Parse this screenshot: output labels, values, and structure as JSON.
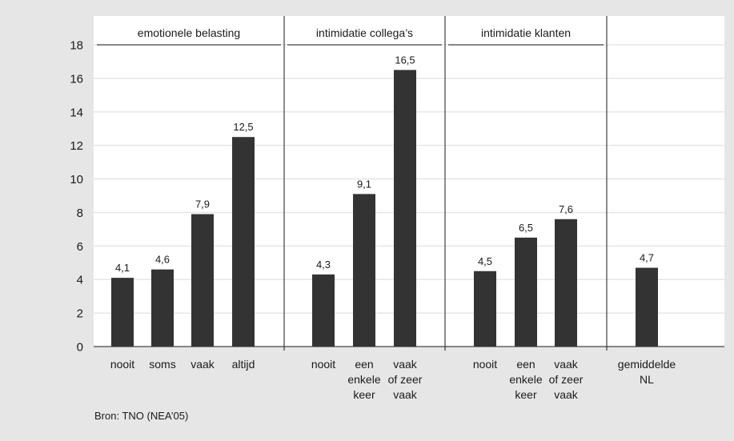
{
  "chart_data": {
    "type": "bar",
    "ylim": [
      0,
      18
    ],
    "yticks": [
      0,
      2,
      4,
      6,
      8,
      10,
      12,
      14,
      16,
      18
    ],
    "groups": [
      {
        "title": "emotionele belasting",
        "bars": [
          {
            "label": [
              "nooit"
            ],
            "value": 4.1,
            "value_label": "4,1"
          },
          {
            "label": [
              "soms"
            ],
            "value": 4.6,
            "value_label": "4,6"
          },
          {
            "label": [
              "vaak"
            ],
            "value": 7.9,
            "value_label": "7,9"
          },
          {
            "label": [
              "altijd"
            ],
            "value": 12.5,
            "value_label": "12,5"
          }
        ]
      },
      {
        "title": "intimidatie collega’s",
        "bars": [
          {
            "label": [
              "nooit"
            ],
            "value": 4.3,
            "value_label": "4,3"
          },
          {
            "label": [
              "een",
              "enkele",
              "keer"
            ],
            "value": 9.1,
            "value_label": "9,1"
          },
          {
            "label": [
              "vaak",
              "of zeer",
              "vaak"
            ],
            "value": 16.5,
            "value_label": "16,5"
          }
        ]
      },
      {
        "title": "intimidatie klanten",
        "bars": [
          {
            "label": [
              "nooit"
            ],
            "value": 4.5,
            "value_label": "4,5"
          },
          {
            "label": [
              "een",
              "enkele",
              "keer"
            ],
            "value": 6.5,
            "value_label": "6,5"
          },
          {
            "label": [
              "vaak",
              "of zeer",
              "vaak"
            ],
            "value": 7.6,
            "value_label": "7,6"
          }
        ]
      },
      {
        "title": "",
        "bars": [
          {
            "label": [
              "gemiddelde",
              "NL"
            ],
            "value": 4.7,
            "value_label": "4,7"
          }
        ]
      }
    ],
    "colors": {
      "bar": "#333333",
      "plot_bg": "#ffffff",
      "page_bg": "#e6e6e6",
      "grid": "#e6e6e6"
    },
    "grid": true
  },
  "source": "Bron: TNO (NEA’05)"
}
